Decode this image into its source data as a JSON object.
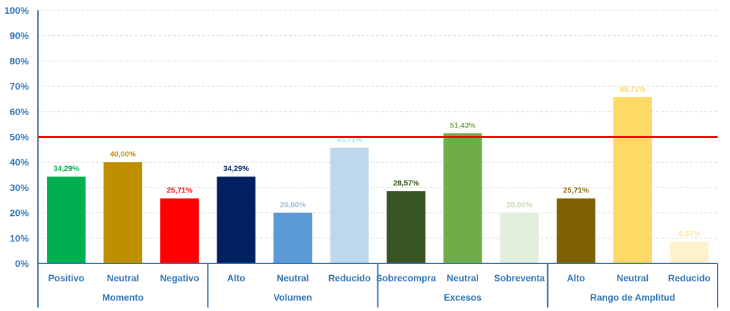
{
  "chart_data": {
    "type": "bar",
    "title": "",
    "xlabel": "",
    "ylabel": "",
    "ylim": [
      0,
      100
    ],
    "yticks": [
      "0%",
      "10%",
      "20%",
      "30%",
      "40%",
      "50%",
      "60%",
      "70%",
      "80%",
      "90%",
      "100%"
    ],
    "grid": true,
    "reference_line": {
      "value": 50,
      "color": "#ff0000"
    },
    "axis_color": "#2e75b6",
    "groups": [
      {
        "name": "Momento",
        "categories": [
          {
            "label": "Positivo",
            "value": 34.29,
            "value_label": "34,29%",
            "color": "#00b050",
            "label_color": "#00b050"
          },
          {
            "label": "Neutral",
            "value": 40.0,
            "value_label": "40,00%",
            "color": "#bf8f00",
            "label_color": "#bf8f00"
          },
          {
            "label": "Negativo",
            "value": 25.71,
            "value_label": "25,71%",
            "color": "#ff0000",
            "label_color": "#ff0000"
          }
        ]
      },
      {
        "name": "Volumen",
        "categories": [
          {
            "label": "Alto",
            "value": 34.29,
            "value_label": "34,29%",
            "color": "#002060",
            "label_color": "#002060"
          },
          {
            "label": "Neutral",
            "value": 20.0,
            "value_label": "20,00%",
            "color": "#5b9bd5",
            "label_color": "#9dc3e6"
          },
          {
            "label": "Reducido",
            "value": 45.71,
            "value_label": "45,71%",
            "color": "#bdd7ee",
            "label_color": "#bdd7ee"
          }
        ]
      },
      {
        "name": "Excesos",
        "categories": [
          {
            "label": "Sobrecompra",
            "value": 28.57,
            "value_label": "28,57%",
            "color": "#375623",
            "label_color": "#375623"
          },
          {
            "label": "Neutral",
            "value": 51.43,
            "value_label": "51,43%",
            "color": "#70ad47",
            "label_color": "#70ad47"
          },
          {
            "label": "Sobreventa",
            "value": 20.0,
            "value_label": "20,00%",
            "color": "#e2efda",
            "label_color": "#c6e0b4"
          }
        ]
      },
      {
        "name": "Rango de Amplitud",
        "categories": [
          {
            "label": "Alto",
            "value": 25.71,
            "value_label": "25,71%",
            "color": "#7f6000",
            "label_color": "#7f6000"
          },
          {
            "label": "Neutral",
            "value": 65.71,
            "value_label": "65,71%",
            "color": "#ffd966",
            "label_color": "#ffd966"
          },
          {
            "label": "Reducido",
            "value": 8.57,
            "value_label": "8,57%",
            "color": "#fff2cc",
            "label_color": "#ffe699"
          }
        ]
      }
    ]
  }
}
